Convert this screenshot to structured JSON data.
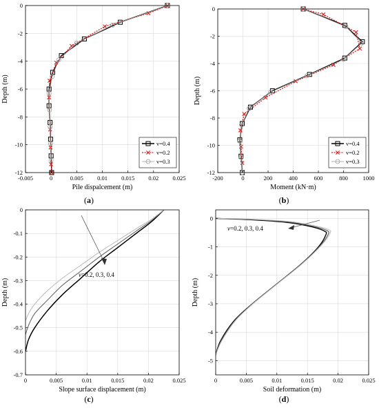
{
  "chart_data": [
    {
      "id": "a",
      "type": "line",
      "panel_label": "a",
      "xlabel": "Pile dispalcement (m)",
      "ylabel": "Depth (m)",
      "xlim": [
        -0.005,
        0.025
      ],
      "ylim": [
        -12,
        0
      ],
      "xticks": [
        -0.005,
        0,
        0.005,
        0.01,
        0.015,
        0.02,
        0.025
      ],
      "xtick_labels": [
        "-0.005",
        "0",
        "0.005",
        "0.01",
        "0.015",
        "0.02",
        "0.025"
      ],
      "yticks": [
        0,
        -2,
        -4,
        -6,
        -8,
        -10,
        -12
      ],
      "ytick_labels": [
        "0",
        "-2",
        "-4",
        "-6",
        "-8",
        "-10",
        "-12"
      ],
      "grid": true,
      "legend_position": "bottom-right",
      "series": [
        {
          "name": "v=0.4",
          "color": "#000000",
          "dash": "",
          "marker": "square",
          "width": 1.4,
          "x": [
            0.0227,
            0.0135,
            0.0065,
            0.002,
            0.0003,
            -0.0004,
            -0.0004,
            -0.0002,
            -0.0001,
            0.0,
            0.0001,
            0.0001,
            0.0
          ],
          "y": [
            0,
            -1.2,
            -2.4,
            -3.6,
            -4.8,
            -6.0,
            -7.2,
            -8.4,
            -9.6,
            -10.8,
            -12.0,
            -12.0,
            -12.0
          ],
          "markers": [
            0,
            1,
            2,
            3,
            4,
            5,
            6,
            7,
            8,
            9,
            10
          ]
        },
        {
          "name": "v=0.2",
          "color": "#d42020",
          "dash": "2,1.6",
          "marker": "x",
          "width": 1.3,
          "x": [
            0.0227,
            0.019,
            0.0105,
            0.004,
            0.001,
            -0.0003,
            -0.0004,
            -0.0002,
            -0.0001,
            0.0,
            0.0001
          ],
          "y": [
            -0.02,
            -0.55,
            -1.5,
            -2.9,
            -4.1,
            -5.4,
            -6.6,
            -8.9,
            -10.2,
            -11.4,
            -12.0
          ],
          "markers": [
            0,
            1,
            2,
            3,
            4,
            5,
            6,
            7,
            8,
            9,
            10
          ]
        },
        {
          "name": "v=0.3",
          "color": "#9a9a9a",
          "dash": "",
          "marker": "circle",
          "width": 0.8,
          "x": [
            0.0227,
            0.012,
            0.005,
            0.0015,
            0.0002,
            -0.0004,
            -0.0003,
            -0.0002,
            -0.0001,
            0.0
          ],
          "y": [
            0,
            -1.4,
            -2.7,
            -3.9,
            -5.1,
            -6.3,
            -7.5,
            -8.7,
            -9.9,
            -11.1
          ],
          "markers": [
            0,
            1,
            2,
            3,
            4,
            5,
            6,
            7,
            8,
            9
          ]
        }
      ]
    },
    {
      "id": "b",
      "type": "line",
      "panel_label": "b",
      "xlabel": "Moment (kN·m)",
      "ylabel": "Depth (m)",
      "xlim": [
        -200,
        1000
      ],
      "ylim": [
        -12,
        0
      ],
      "xticks": [
        -200,
        0,
        200,
        400,
        600,
        800,
        1000
      ],
      "xtick_labels": [
        "-200",
        "0",
        "200",
        "400",
        "600",
        "800",
        "1000"
      ],
      "yticks": [
        0,
        -2,
        -4,
        -6,
        -8,
        -10,
        -12
      ],
      "ytick_labels": [
        "0",
        "-2",
        "-4",
        "-6",
        "-8",
        "-10",
        "-12"
      ],
      "grid": true,
      "legend_position": "bottom-right",
      "series": [
        {
          "name": "v=0.4",
          "color": "#000000",
          "dash": "",
          "marker": "square",
          "width": 1.4,
          "x": [
            480,
            810,
            950,
            810,
            530,
            235,
            60,
            -5,
            -25,
            -15,
            -5
          ],
          "y": [
            0,
            -1.2,
            -2.4,
            -3.6,
            -4.8,
            -6.0,
            -7.2,
            -8.4,
            -9.6,
            -10.8,
            -12.0
          ],
          "markers": [
            0,
            1,
            2,
            3,
            4,
            5,
            6,
            7,
            8,
            9,
            10
          ]
        },
        {
          "name": "v=0.2",
          "color": "#d42020",
          "dash": "2,1.6",
          "marker": "x",
          "width": 1.3,
          "x": [
            480,
            640,
            900,
            930,
            720,
            420,
            180,
            10,
            -20,
            -15,
            -5
          ],
          "y": [
            0,
            -0.4,
            -1.7,
            -2.9,
            -4.1,
            -5.3,
            -6.5,
            -7.7,
            -8.9,
            -10.1,
            -11.3
          ],
          "markers": [
            0,
            1,
            2,
            3,
            4,
            5,
            6,
            7,
            8,
            9,
            10
          ]
        },
        {
          "name": "v=0.3",
          "color": "#9a9a9a",
          "dash": "",
          "marker": "circle",
          "width": 0.8,
          "x": [
            480,
            820,
            945,
            800,
            510,
            220,
            50,
            -10,
            -25,
            -15,
            -5
          ],
          "y": [
            0,
            -1.3,
            -2.5,
            -3.7,
            -4.9,
            -6.1,
            -7.3,
            -8.5,
            -9.7,
            -10.9,
            -12.0
          ],
          "markers": [
            0,
            1,
            2,
            3,
            4,
            5,
            6,
            7,
            8,
            9,
            10
          ]
        }
      ]
    },
    {
      "id": "c",
      "type": "line",
      "panel_label": "c",
      "xlabel": "Slope surface displacement (m)",
      "ylabel": "Depth (m)",
      "xlim": [
        0,
        0.025
      ],
      "ylim": [
        -0.7,
        0
      ],
      "xticks": [
        0,
        0.005,
        0.01,
        0.015,
        0.02,
        0.025
      ],
      "xtick_labels": [
        "0",
        "0.005",
        "0.01",
        "0.015",
        "0.02",
        "0.025"
      ],
      "yticks": [
        0,
        -0.1,
        -0.2,
        -0.3,
        -0.4,
        -0.5,
        -0.6,
        -0.7
      ],
      "ytick_labels": [
        "0",
        "-0.1",
        "-0.2",
        "-0.3",
        "-0.4",
        "-0.5",
        "-0.6",
        "-0.7"
      ],
      "grid": true,
      "annotation": "v=0.2,  0.3,  0.4",
      "annotation_prefix": "v",
      "annotation_rest": "=0.2,  0.3,  0.4",
      "series": [
        {
          "color": "#000000",
          "width": 1.5,
          "x": [
            0.0225,
            0.0205,
            0.018,
            0.015,
            0.012,
            0.009,
            0.006,
            0.0035,
            0.0015,
            0.0005,
            0.0
          ],
          "y": [
            0,
            -0.05,
            -0.1,
            -0.16,
            -0.22,
            -0.29,
            -0.36,
            -0.43,
            -0.5,
            -0.55,
            -0.6
          ]
        },
        {
          "color": "#5a5a5a",
          "width": 1.0,
          "x": [
            0.0225,
            0.0205,
            0.018,
            0.015,
            0.012,
            0.009,
            0.006,
            0.0035,
            0.0015,
            0.0005,
            0.0
          ],
          "y": [
            0,
            -0.045,
            -0.09,
            -0.145,
            -0.2,
            -0.26,
            -0.32,
            -0.385,
            -0.44,
            -0.49,
            -0.53
          ]
        },
        {
          "color": "#b8b8b8",
          "width": 1.0,
          "x": [
            0.0225,
            0.0205,
            0.018,
            0.015,
            0.012,
            0.009,
            0.006,
            0.0035,
            0.0015,
            0.0005,
            0.0
          ],
          "y": [
            0,
            -0.04,
            -0.08,
            -0.13,
            -0.18,
            -0.235,
            -0.29,
            -0.345,
            -0.4,
            -0.44,
            -0.47
          ]
        }
      ]
    },
    {
      "id": "d",
      "type": "line",
      "panel_label": "d",
      "xlabel": "Soil deformation (m)",
      "ylabel": "Depth (m)",
      "xlim": [
        0,
        0.025
      ],
      "ylim": [
        -5.5,
        0.3
      ],
      "xticks": [
        0,
        0.005,
        0.01,
        0.015,
        0.02,
        0.025
      ],
      "xtick_labels": [
        "0",
        "0.005",
        "0.01",
        "0.015",
        "0.02",
        "0.025"
      ],
      "yticks": [
        0,
        -1,
        -2,
        -3,
        -4,
        -5
      ],
      "ytick_labels": [
        "0",
        "-1",
        "-2",
        "-3",
        "-4",
        "-5"
      ],
      "grid": true,
      "annotation_prefix": "v",
      "annotation_rest": "=0.2,  0.3,  0.4",
      "series": [
        {
          "color": "#000000",
          "width": 1.4,
          "x": [
            0.0,
            0.006,
            0.012,
            0.0158,
            0.0178,
            0.018,
            0.0168,
            0.014,
            0.01,
            0.006,
            0.003,
            0.0008,
            0.0
          ],
          "y": [
            0.0,
            -0.05,
            -0.15,
            -0.3,
            -0.45,
            -0.58,
            -1.0,
            -1.6,
            -2.3,
            -3.0,
            -3.6,
            -4.3,
            -4.8
          ]
        },
        {
          "color": "#5a5a5a",
          "width": 1.1,
          "x": [
            0.0,
            0.006,
            0.012,
            0.016,
            0.0181,
            0.0184,
            0.017,
            0.0141,
            0.0101,
            0.0061,
            0.0031,
            0.0009,
            0.0
          ],
          "y": [
            0.0,
            -0.04,
            -0.13,
            -0.28,
            -0.42,
            -0.55,
            -0.98,
            -1.59,
            -2.29,
            -2.99,
            -3.6,
            -4.3,
            -4.8
          ]
        },
        {
          "color": "#b8b8b8",
          "width": 1.0,
          "x": [
            0.0,
            0.006,
            0.012,
            0.0162,
            0.0184,
            0.0187,
            0.0172,
            0.0142,
            0.0102,
            0.0062,
            0.0032,
            0.001,
            0.0
          ],
          "y": [
            0.0,
            -0.03,
            -0.11,
            -0.26,
            -0.39,
            -0.52,
            -0.96,
            -1.58,
            -2.28,
            -2.98,
            -3.6,
            -4.3,
            -4.8
          ]
        }
      ]
    }
  ]
}
